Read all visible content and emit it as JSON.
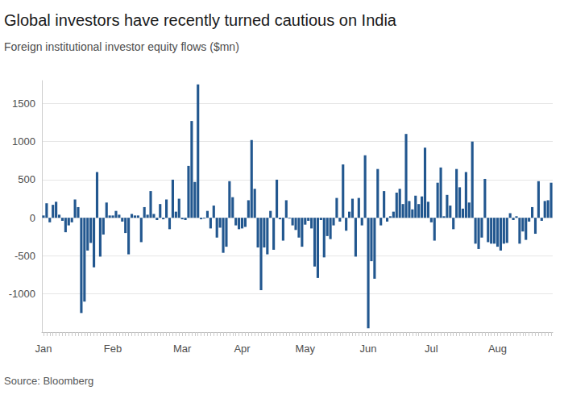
{
  "chart_data": {
    "type": "bar",
    "title": "Global investors have recently turned cautious on India",
    "subtitle": "Foreign institutional investor equity flows ($mn)",
    "source": "Source: Bloomberg",
    "color": "#22578f",
    "grid": true,
    "ylim": [
      -1500,
      1800
    ],
    "yticks": [
      -1000,
      -500,
      0,
      500,
      1000,
      1500
    ],
    "categories": [
      "Jan",
      null,
      null,
      null,
      null,
      null,
      null,
      null,
      null,
      null,
      null,
      null,
      null,
      null,
      null,
      null,
      null,
      null,
      null,
      null,
      null,
      null,
      "Feb",
      null,
      null,
      null,
      null,
      null,
      null,
      null,
      null,
      null,
      null,
      null,
      null,
      null,
      null,
      null,
      null,
      null,
      null,
      null,
      null,
      null,
      "Mar",
      null,
      null,
      null,
      null,
      null,
      null,
      null,
      null,
      null,
      null,
      null,
      null,
      null,
      null,
      null,
      null,
      null,
      null,
      "Apr",
      null,
      null,
      null,
      null,
      null,
      null,
      null,
      null,
      null,
      null,
      null,
      null,
      null,
      null,
      null,
      null,
      null,
      null,
      null,
      "May",
      null,
      null,
      null,
      null,
      null,
      null,
      null,
      null,
      null,
      null,
      null,
      null,
      null,
      null,
      null,
      null,
      null,
      null,
      null,
      "Jun",
      null,
      null,
      null,
      null,
      null,
      null,
      null,
      null,
      null,
      null,
      null,
      null,
      null,
      null,
      null,
      null,
      null,
      null,
      null,
      "Jul",
      null,
      null,
      null,
      null,
      null,
      null,
      null,
      null,
      null,
      null,
      null,
      null,
      null,
      null,
      null,
      null,
      null,
      null,
      null,
      null,
      "Aug",
      null,
      null,
      null,
      null,
      null,
      null,
      null,
      null,
      null,
      null,
      null,
      null,
      null,
      null,
      null,
      null,
      null
    ],
    "values": [
      30,
      190,
      -60,
      170,
      210,
      40,
      -40,
      -190,
      -100,
      -60,
      240,
      140,
      -1250,
      -1100,
      -430,
      -330,
      -650,
      600,
      -510,
      -220,
      200,
      30,
      30,
      90,
      40,
      -50,
      -200,
      -480,
      50,
      30,
      30,
      -320,
      140,
      40,
      350,
      50,
      -30,
      180,
      -20,
      240,
      -150,
      500,
      80,
      250,
      -20,
      -30,
      680,
      1270,
      470,
      1750,
      -20,
      -10,
      90,
      -140,
      160,
      -260,
      -130,
      -460,
      -380,
      480,
      270,
      -100,
      -150,
      -140,
      -120,
      230,
      1020,
      380,
      -390,
      -950,
      -390,
      -480,
      90,
      -420,
      500,
      -20,
      -300,
      230,
      -10,
      -100,
      -160,
      -260,
      -380,
      -90,
      -40,
      -140,
      -640,
      -790,
      -30,
      -520,
      -240,
      -280,
      -100,
      260,
      -50,
      700,
      -170,
      80,
      250,
      -510,
      260,
      -100,
      820,
      -1450,
      -570,
      -800,
      640,
      -100,
      350,
      -50,
      20,
      80,
      330,
      380,
      180,
      1100,
      220,
      110,
      290,
      180,
      280,
      920,
      210,
      -60,
      -300,
      460,
      660,
      20,
      300,
      160,
      -150,
      640,
      400,
      120,
      600,
      200,
      1000,
      -340,
      -410,
      -260,
      510,
      -320,
      -340,
      -340,
      -380,
      -430,
      -340,
      -330,
      60,
      -30,
      20,
      -340,
      -180,
      -290,
      -50,
      140,
      -210,
      480,
      -40,
      220,
      230,
      460
    ]
  }
}
